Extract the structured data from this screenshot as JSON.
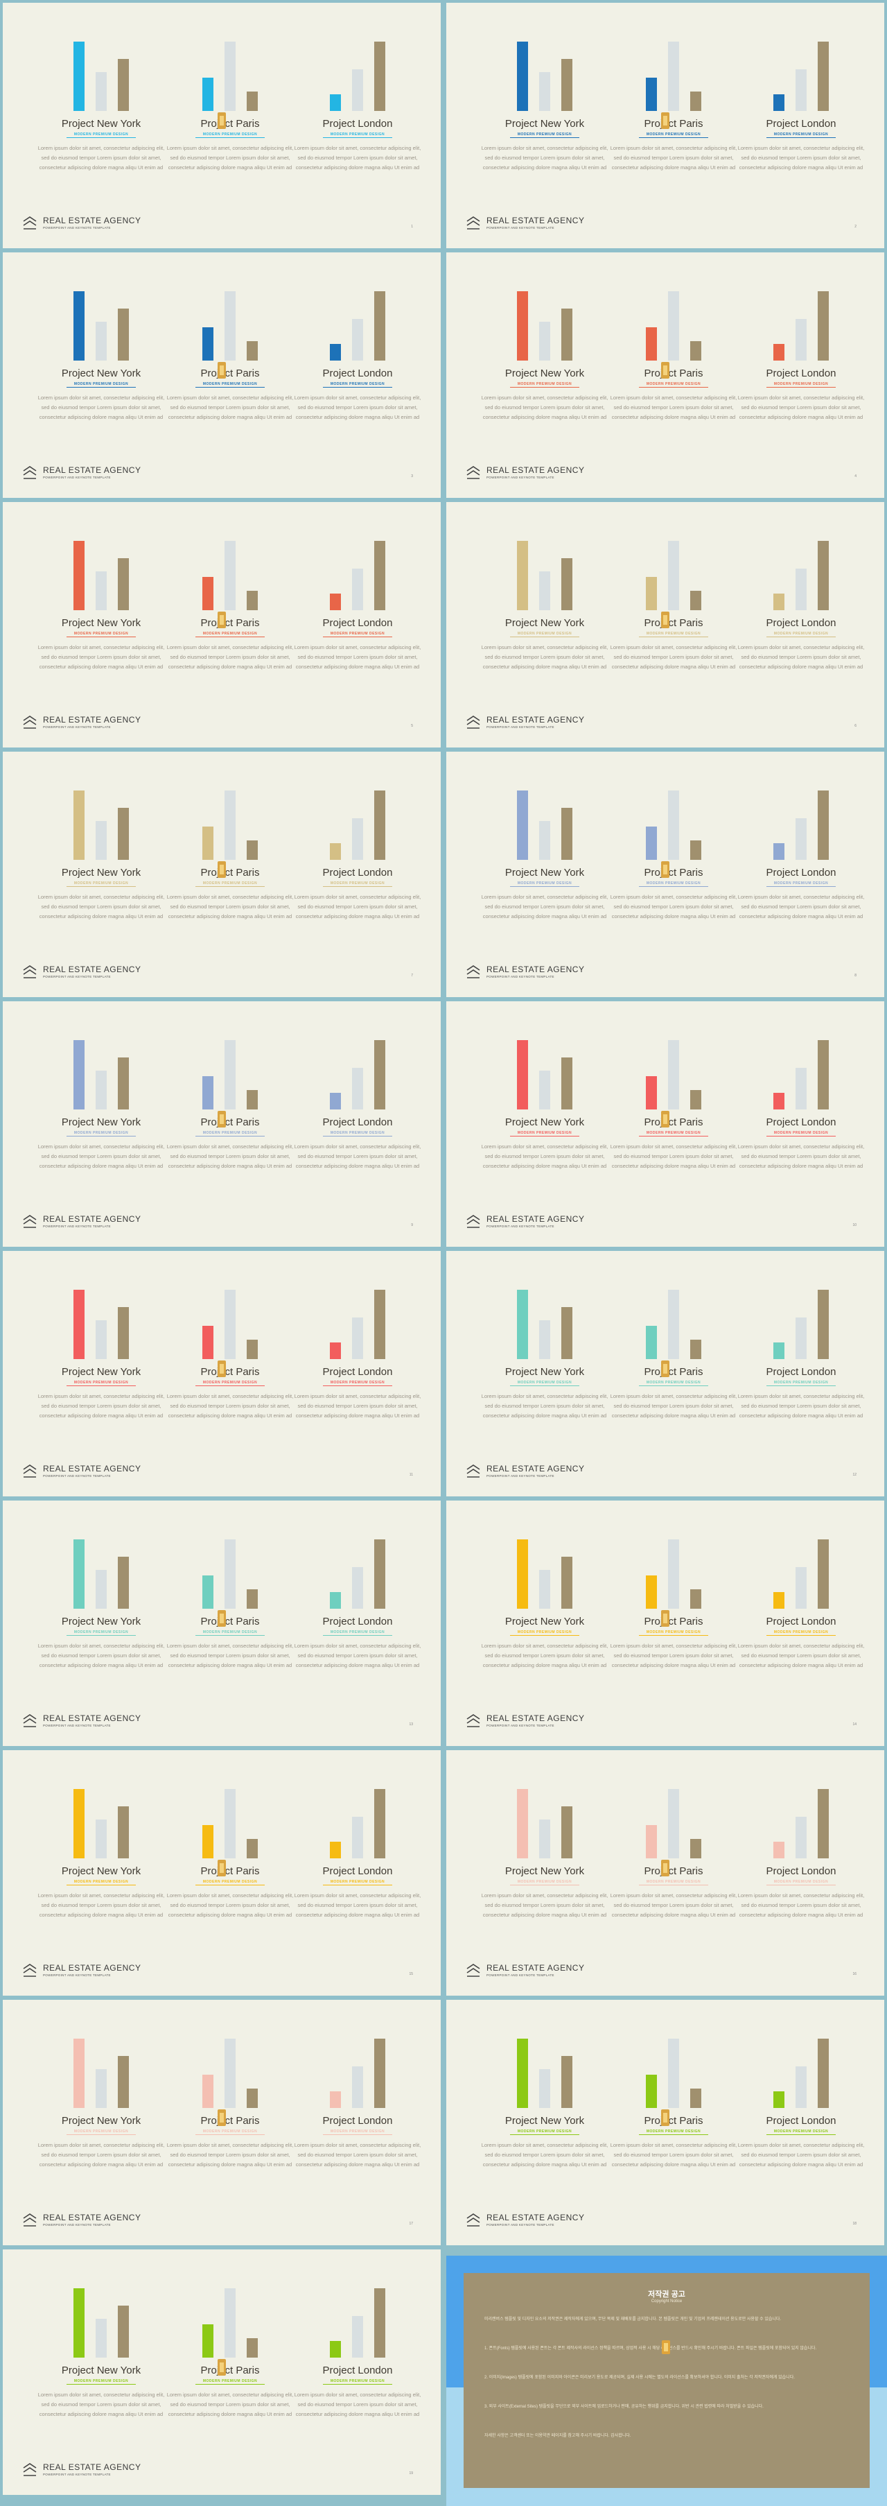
{
  "projects": [
    {
      "title": "Project New York",
      "subtitle": "MODERN PREMIUM DESIGN"
    },
    {
      "title": "Project Paris",
      "subtitle": "MODERN PREMIUM DESIGN"
    },
    {
      "title": "Project London",
      "subtitle": "MODERN PREMIUM DESIGN"
    }
  ],
  "body_text": "Lorem ipsum dolor sit amet, consectetur adipiscing elit, sed do eiusmod tempor Lorem ipsum dolor sit amet, consectetur adipiscing dolore magna aliqu Ut enim ad",
  "agency": "REAL ESTATE AGENCY",
  "agency_sub": "POWERPOINT AND KEYNOTE TEMPLATE",
  "slides": [
    {
      "accent": "#23b5e3",
      "page": "1"
    },
    {
      "accent": "#1d72b8",
      "page": "2"
    },
    {
      "accent": "#1d72b8",
      "page": "3"
    },
    {
      "accent": "#e86548",
      "page": "4"
    },
    {
      "accent": "#e86548",
      "page": "5"
    },
    {
      "accent": "#d4bf85",
      "page": "6"
    },
    {
      "accent": "#d4bf85",
      "page": "7"
    },
    {
      "accent": "#90a8d2",
      "page": "8"
    },
    {
      "accent": "#90a8d2",
      "page": "9"
    },
    {
      "accent": "#f25d5d",
      "page": "10"
    },
    {
      "accent": "#f25d5d",
      "page": "11"
    },
    {
      "accent": "#6fcfbf",
      "page": "12"
    },
    {
      "accent": "#6fcfbf",
      "page": "13"
    },
    {
      "accent": "#f6bb12",
      "page": "14"
    },
    {
      "accent": "#f6bb12",
      "page": "15"
    },
    {
      "accent": "#f4bfb2",
      "page": "16"
    },
    {
      "accent": "#f4bfb2",
      "page": "17"
    },
    {
      "accent": "#8cc915",
      "page": "18"
    },
    {
      "accent": "#8cc915",
      "page": "19"
    }
  ],
  "chart_data": {
    "type": "bar",
    "categories": [
      "Project New York",
      "Project Paris",
      "Project London"
    ],
    "series": [
      {
        "values": [
          100,
          48,
          24
        ]
      },
      {
        "values": [
          56,
          100,
          60
        ]
      },
      {
        "values": [
          75,
          28,
          100
        ]
      }
    ],
    "series_colors": [
      "accent",
      "#d8dfe1",
      "#a0906e"
    ]
  },
  "copyright": {
    "title": "저작권 공고",
    "subtitle": "Copyright Notice",
    "paragraphs": [
      "미리캔버스 템플릿 및 디자인 요소의 저작권은 제작자에게 있으며, 무단 복제 및 재배포를 금지합니다. 본 템플릿은 개인 및 기업의 프레젠테이션 용도로만 사용할 수 있습니다.",
      "1. 폰트(Fonts) 템플릿에 사용된 폰트는 각 폰트 제작사의 라이선스 정책을 따르며, 상업적 사용 시 해당 라이선스를 반드시 확인해 주시기 바랍니다. 폰트 파일은 템플릿에 포함되어 있지 않습니다.",
      "2. 이미지(Images) 템플릿에 포함된 이미지와 아이콘은 미리보기 용도로 제공되며, 실제 사용 시에는 별도의 라이선스를 확보하셔야 합니다. 이미지 출처는 각 저작권자에게 있습니다.",
      "3. 외부 사이트(External Sites) 템플릿을 무단으로 외부 사이트에 업로드하거나 판매, 공유하는 행위를 금지합니다. 위반 시 관련 법령에 따라 처벌받을 수 있습니다.",
      "자세한 사항은 고객센터 또는 이용약관 페이지를 참고해 주시기 바랍니다. 감사합니다."
    ]
  }
}
